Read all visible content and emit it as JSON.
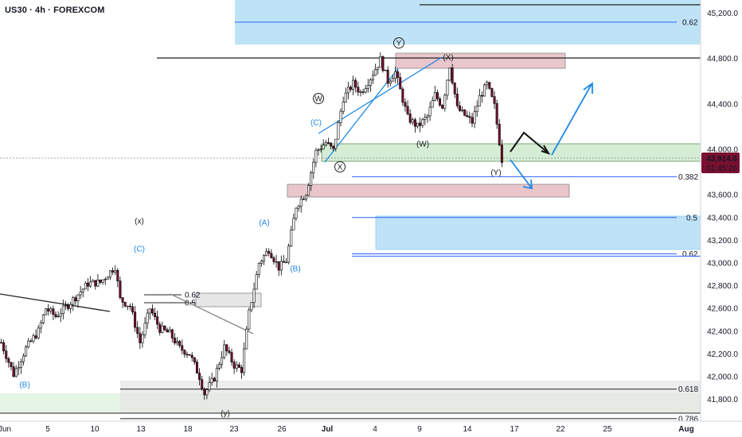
{
  "header": {
    "title": "US30 · 4h · FOREXCOM"
  },
  "colors": {
    "up_fill": "#ffffff",
    "down_fill": "#7a1030",
    "candle_line": "#000000",
    "fib_blue": "#2962ff",
    "wave_blue": "#1e88e5",
    "zone_blue": "#bfe3f6",
    "zone_green": "#d4edd4",
    "zone_red": "#e9c6cc",
    "zone_grey": "#e6e6e6",
    "price_tag": "#7a1030"
  },
  "price_tag": {
    "price": "43,914.6",
    "countdown": "01:45:26"
  },
  "chart_data": {
    "type": "candlestick",
    "symbol": "US30",
    "timeframe": "4h",
    "broker": "FOREXCOM",
    "y_range": [
      41580,
      45350
    ],
    "y_ticks": [
      {
        "v": 45200,
        "label": "45,200.0"
      },
      {
        "v": 44800,
        "label": "44,800.0"
      },
      {
        "v": 44400,
        "label": "44,400.0"
      },
      {
        "v": 44000,
        "label": "44,000.0"
      },
      {
        "v": 43600,
        "label": "43,600.0"
      },
      {
        "v": 43400,
        "label": "43,400.0"
      },
      {
        "v": 43200,
        "label": "43,200.0"
      },
      {
        "v": 43000,
        "label": "43,000.0"
      },
      {
        "v": 42800,
        "label": "42,800.0"
      },
      {
        "v": 42600,
        "label": "42,600.0"
      },
      {
        "v": 42400,
        "label": "42,400.0"
      },
      {
        "v": 42200,
        "label": "42,200.0"
      },
      {
        "v": 42000,
        "label": "42,000.0"
      },
      {
        "v": 41800,
        "label": "41,800.0"
      }
    ],
    "x_ticks": [
      "Jun",
      "5",
      "10",
      "13",
      "18",
      "23",
      "26",
      "Jul",
      "4",
      "9",
      "14",
      "17",
      "22",
      "25",
      "Aug"
    ],
    "levels": [
      {
        "value": 45120,
        "label": "0.62"
      },
      {
        "value": 43760,
        "label": "0.382"
      },
      {
        "value": 43400,
        "label": "0.5"
      },
      {
        "value": 43080,
        "label": "0.62"
      },
      {
        "value": 41890,
        "label": "0.618"
      },
      {
        "value": 41630,
        "label": "0.786"
      },
      {
        "value": 42720,
        "label": "0.62"
      },
      {
        "value": 42650,
        "label": "0.5"
      }
    ],
    "wave_labels": [
      {
        "text": "Y",
        "circled": true
      },
      {
        "text": "(X)",
        "circled": false
      },
      {
        "text": "W",
        "circled": true
      },
      {
        "text": "(C)",
        "circled": false
      },
      {
        "text": "(W)",
        "circled": false
      },
      {
        "text": "X",
        "circled": true
      },
      {
        "text": "(Y)",
        "circled": false
      },
      {
        "text": "(x)",
        "circled": false
      },
      {
        "text": "(C)",
        "circled": false
      },
      {
        "text": "(A)",
        "circled": false
      },
      {
        "text": "(B)",
        "circled": false
      },
      {
        "text": "(B)",
        "circled": false
      },
      {
        "text": "(y)",
        "circled": false
      }
    ],
    "anchors": [
      [
        0,
        42300
      ],
      [
        5,
        42020
      ],
      [
        10,
        42250
      ],
      [
        15,
        42400
      ],
      [
        18,
        42600
      ],
      [
        22,
        42530
      ],
      [
        26,
        42610
      ],
      [
        30,
        42700
      ],
      [
        35,
        42820
      ],
      [
        40,
        42830
      ],
      [
        46,
        42970
      ],
      [
        48,
        42680
      ],
      [
        52,
        42620
      ],
      [
        56,
        42300
      ],
      [
        60,
        42600
      ],
      [
        64,
        42420
      ],
      [
        68,
        42380
      ],
      [
        72,
        42250
      ],
      [
        76,
        42200
      ],
      [
        80,
        42000
      ],
      [
        82,
        41850
      ],
      [
        86,
        41990
      ],
      [
        90,
        42260
      ],
      [
        94,
        42100
      ],
      [
        97,
        42060
      ],
      [
        100,
        42560
      ],
      [
        104,
        43000
      ],
      [
        108,
        43120
      ],
      [
        112,
        42960
      ],
      [
        115,
        43020
      ],
      [
        119,
        43500
      ],
      [
        123,
        43620
      ],
      [
        127,
        43980
      ],
      [
        131,
        44060
      ],
      [
        134,
        43990
      ],
      [
        138,
        44450
      ],
      [
        142,
        44580
      ],
      [
        145,
        44500
      ],
      [
        149,
        44630
      ],
      [
        153,
        44790
      ],
      [
        156,
        44600
      ],
      [
        159,
        44680
      ],
      [
        161,
        44520
      ],
      [
        164,
        44280
      ],
      [
        168,
        44200
      ],
      [
        172,
        44290
      ],
      [
        175,
        44480
      ],
      [
        178,
        44380
      ],
      [
        181,
        44740
      ],
      [
        184,
        44360
      ],
      [
        187,
        44300
      ],
      [
        190,
        44240
      ],
      [
        193,
        44460
      ],
      [
        196,
        44570
      ],
      [
        199,
        44380
      ],
      [
        202,
        43910
      ]
    ]
  }
}
